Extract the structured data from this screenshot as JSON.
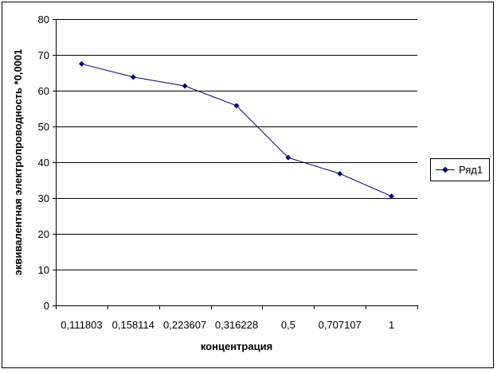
{
  "chart_data": {
    "type": "line",
    "title": "",
    "xlabel": "концентрация",
    "ylabel": "эквивалентная электропроводность *0,0001",
    "categories": [
      "0,111803",
      "0,158114",
      "0,223607",
      "0,316228",
      "0,5",
      "0,707107",
      "1"
    ],
    "series": [
      {
        "name": "Ряд1",
        "values": [
          67.5,
          63.8,
          61.3,
          55.8,
          41.3,
          36.8,
          30.5
        ],
        "color": "#000080"
      }
    ],
    "ylim": [
      0,
      80
    ],
    "yticks": [
      "0",
      "10",
      "20",
      "30",
      "40",
      "50",
      "60",
      "70",
      "80"
    ],
    "grid": true,
    "legend_position": "right",
    "plot_background": "#ffffff",
    "grid_color": "#000000",
    "marker": "diamond"
  }
}
